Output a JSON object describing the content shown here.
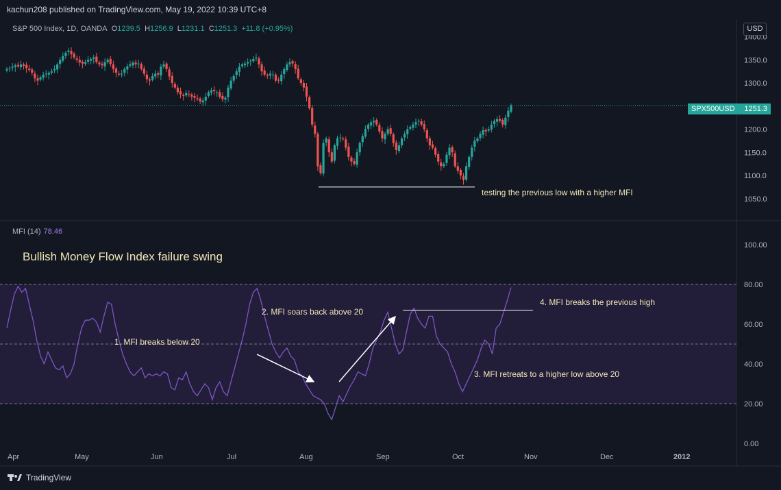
{
  "header": {
    "publisher": "kachun208 published on TradingView.com, May 19, 2022 10:39 UTC+8",
    "symbol": "S&P 500 Index, 1D, OANDA",
    "o_label": "O",
    "o": "1239.5",
    "h_label": "H",
    "h": "1256.9",
    "l_label": "L",
    "l": "1231.1",
    "c_label": "C",
    "c": "1251.3",
    "change": "+11.8 (+0.95%)"
  },
  "currency_button": "USD",
  "price_tag": {
    "symbol": "SPX500USD",
    "value": "1251.3"
  },
  "indicator": {
    "name": "MFI (14)",
    "value": "78.46"
  },
  "footer": {
    "brand": "TradingView",
    "logo": "tradingview-logo-icon"
  },
  "colors": {
    "up": "#26a69a",
    "down": "#ef5350",
    "mfi": "#7e57c2",
    "band": "#2a2540",
    "bg": "#131722"
  },
  "chart_data": [
    {
      "type": "candlestick",
      "title": "",
      "ylim": [
        1020,
        1420
      ],
      "y_ticks": [
        "1400.0",
        "1350.0",
        "1300.0",
        "1250.0",
        "1200.0",
        "1150.0",
        "1100.0",
        "1050.0"
      ],
      "x_ticks": [
        "Apr",
        "May",
        "Jun",
        "Jul",
        "Aug",
        "Sep",
        "Oct",
        "Nov",
        "Dec",
        "2012"
      ],
      "last_price": 1251.3,
      "annotation": "testing the previous low with a higher MFI",
      "support_level": 1075,
      "close_series": [
        1330,
        1331,
        1335,
        1338,
        1336,
        1340,
        1337,
        1332,
        1328,
        1322,
        1310,
        1305,
        1312,
        1318,
        1320,
        1322,
        1325,
        1330,
        1340,
        1350,
        1358,
        1365,
        1370,
        1362,
        1355,
        1350,
        1344,
        1342,
        1345,
        1350,
        1352,
        1355,
        1345,
        1340,
        1338,
        1345,
        1350,
        1341,
        1330,
        1322,
        1318,
        1320,
        1330,
        1336,
        1340,
        1344,
        1340,
        1342,
        1330,
        1320,
        1308,
        1305,
        1315,
        1320,
        1318,
        1335,
        1340,
        1330,
        1314,
        1300,
        1290,
        1280,
        1275,
        1272,
        1278,
        1275,
        1270,
        1268,
        1265,
        1260,
        1262,
        1270,
        1280,
        1284,
        1282,
        1280,
        1270,
        1265,
        1268,
        1290,
        1305,
        1315,
        1325,
        1335,
        1340,
        1342,
        1345,
        1348,
        1352,
        1355,
        1340,
        1325,
        1318,
        1315,
        1320,
        1318,
        1305,
        1305,
        1318,
        1330,
        1340,
        1345,
        1342,
        1330,
        1310,
        1300,
        1290,
        1270,
        1245,
        1210,
        1190,
        1120,
        1105,
        1170,
        1180,
        1150,
        1130,
        1165,
        1180,
        1182,
        1178,
        1160,
        1140,
        1130,
        1125,
        1150,
        1170,
        1185,
        1200,
        1210,
        1215,
        1218,
        1210,
        1195,
        1180,
        1190,
        1200,
        1190,
        1170,
        1155,
        1165,
        1180,
        1190,
        1200,
        1205,
        1210,
        1215,
        1218,
        1210,
        1200,
        1180,
        1165,
        1160,
        1145,
        1130,
        1120,
        1125,
        1145,
        1160,
        1150,
        1120,
        1110,
        1100,
        1090,
        1120,
        1140,
        1160,
        1175,
        1180,
        1190,
        1198,
        1195,
        1200,
        1210,
        1218,
        1222,
        1218,
        1210,
        1225,
        1240,
        1251.3
      ]
    },
    {
      "type": "line",
      "series": [
        {
          "name": "MFI (14)"
        }
      ],
      "ylim": [
        -10,
        110
      ],
      "y_ticks": [
        "100.00",
        "80.00",
        "60.00",
        "40.00",
        "20.00",
        "0.00"
      ],
      "levels": [
        80,
        50,
        20
      ],
      "title": "Bullish Money Flow Index failure swing",
      "annotations": [
        "1. MFI breaks below 20",
        "2. MFI soars back above 20",
        "3. MFI retreats to a higher low above 20",
        "4. MFI breaks the previous high"
      ],
      "previous_high": 67,
      "values": [
        58,
        67,
        75,
        79,
        76,
        78,
        70,
        62,
        52,
        44,
        40,
        46,
        42,
        38,
        37,
        39,
        33,
        35,
        40,
        50,
        58,
        62,
        62,
        63,
        61,
        56,
        64,
        71,
        70,
        60,
        52,
        45,
        40,
        36,
        34,
        36,
        38,
        33,
        35,
        34,
        35,
        34,
        36,
        35,
        28,
        27,
        33,
        32,
        36,
        30,
        26,
        24,
        27,
        30,
        28,
        22,
        28,
        31,
        26,
        24,
        31,
        38,
        45,
        52,
        60,
        70,
        76,
        78,
        72,
        64,
        57,
        50,
        46,
        43,
        46,
        48,
        44,
        42,
        36,
        34,
        30,
        27,
        24,
        23,
        22,
        20,
        15,
        12,
        18,
        24,
        21,
        25,
        29,
        32,
        36,
        35,
        34,
        40,
        48,
        52,
        56,
        62,
        66,
        58,
        50,
        45,
        47,
        56,
        65,
        68,
        63,
        60,
        58,
        64,
        64,
        54,
        50,
        48,
        46,
        40,
        36,
        30,
        26,
        30,
        34,
        38,
        42,
        48,
        52,
        50,
        45,
        58,
        60,
        66,
        72,
        78.46
      ]
    }
  ]
}
